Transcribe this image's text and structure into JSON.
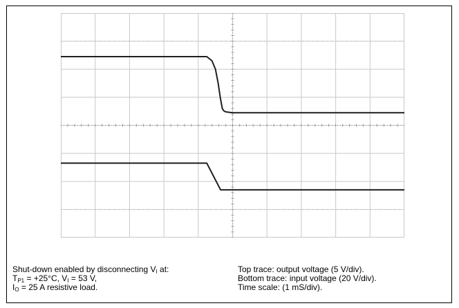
{
  "caption": {
    "left": {
      "line1_prefix": "Shut-down enabled by disconnecting V",
      "line1_sub": "I",
      "line1_suffix": " at:",
      "line2_a": "T",
      "line2_a_sub": "P1",
      "line2_b": " = +25°C, V",
      "line2_b_sub": "I",
      "line2_c": " = 53 V,",
      "line3_a": "I",
      "line3_a_sub": "O",
      "line3_b": " = 25 A resistive load."
    },
    "right": {
      "line1": "Top trace: output voltage (5 V/div).",
      "line2": "Bottom trace: input voltage (20 V/div).",
      "line3": "Time scale: (1 mS/div)."
    }
  },
  "colors": {
    "grid": "#c8c8c8",
    "trace": "#1e1e1e",
    "axis": "#999999"
  },
  "chart_data": {
    "type": "line",
    "x_unit": "div",
    "y_unit": "div",
    "xlim": [
      0,
      10
    ],
    "ylim": [
      0,
      8
    ],
    "grid": true,
    "series": [
      {
        "x": [
          0,
          4.25,
          4.4,
          4.5,
          4.58,
          4.64,
          4.7,
          4.74,
          4.8,
          5.0,
          10
        ],
        "y": [
          6.45,
          6.45,
          6.3,
          6.0,
          5.5,
          5.0,
          4.6,
          4.52,
          4.48,
          4.45,
          4.45
        ]
      },
      {
        "x": [
          0,
          4.25,
          4.65,
          10
        ],
        "y": [
          2.65,
          2.65,
          1.7,
          1.7
        ]
      }
    ]
  }
}
